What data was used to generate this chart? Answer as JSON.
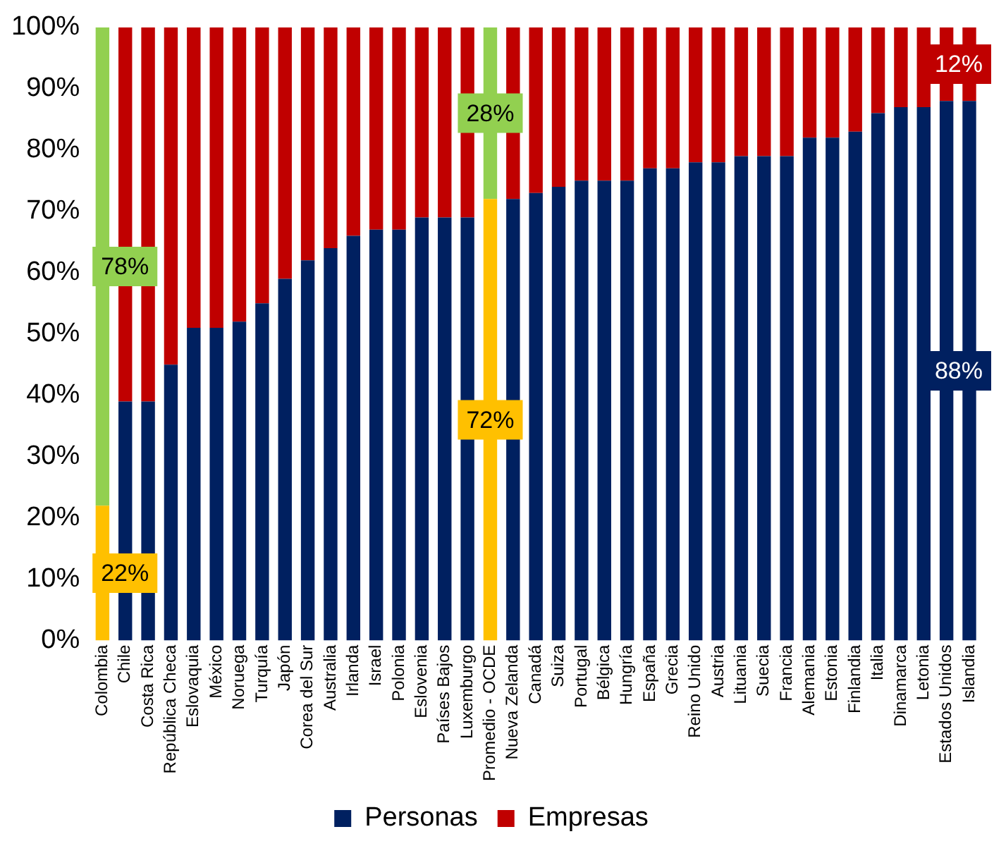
{
  "chart_data": {
    "type": "bar",
    "stacked": true,
    "legend": "bottom",
    "grid": false,
    "categories": [
      "Colombia",
      "Chile",
      "Costa Rica",
      "República Checa",
      "Eslovaquia",
      "México",
      "Noruega",
      "Turquía",
      "Japón",
      "Corea del Sur",
      "Australia",
      "Irlanda",
      "Israel",
      "Polonia",
      "Eslovenia",
      "Países Bajos",
      "Luxemburgo",
      "Promedio - OCDE",
      "Nueva Zelanda",
      "Canadá",
      "Suiza",
      "Portugal",
      "Bélgica",
      "Hungría",
      "España",
      "Grecia",
      "Reino Unido",
      "Austria",
      "Lituania",
      "Suecia",
      "Francia",
      "Alemania",
      "Estonia",
      "Finlandia",
      "Italia",
      "Dinamarca",
      "Letonia",
      "Estados Unidos",
      "Islandia"
    ],
    "ylim": [
      0,
      100
    ],
    "yticks": [
      {
        "value": 0,
        "label": "0%"
      },
      {
        "value": 10,
        "label": "10%"
      },
      {
        "value": 20,
        "label": "20%"
      },
      {
        "value": 30,
        "label": "30%"
      },
      {
        "value": 40,
        "label": "40%"
      },
      {
        "value": 50,
        "label": "50%"
      },
      {
        "value": 60,
        "label": "60%"
      },
      {
        "value": 70,
        "label": "70%"
      },
      {
        "value": 80,
        "label": "80%"
      },
      {
        "value": 90,
        "label": "90%"
      },
      {
        "value": 100,
        "label": "100%"
      }
    ],
    "series": [
      {
        "name": "Personas",
        "color": "#002060",
        "colors": [
          "#ffc000",
          "#002060",
          "#002060",
          "#002060",
          "#002060",
          "#002060",
          "#002060",
          "#002060",
          "#002060",
          "#002060",
          "#002060",
          "#002060",
          "#002060",
          "#002060",
          "#002060",
          "#002060",
          "#002060",
          "#ffc000",
          "#002060",
          "#002060",
          "#002060",
          "#002060",
          "#002060",
          "#002060",
          "#002060",
          "#002060",
          "#002060",
          "#002060",
          "#002060",
          "#002060",
          "#002060",
          "#002060",
          "#002060",
          "#002060",
          "#002060",
          "#002060",
          "#002060",
          "#002060",
          "#002060"
        ],
        "values": [
          22,
          39,
          39,
          45,
          51,
          51,
          52,
          55,
          59,
          62,
          64,
          66,
          67,
          67,
          69,
          69,
          69,
          72,
          72,
          73,
          74,
          75,
          75,
          75,
          77,
          77,
          78,
          78,
          79,
          79,
          79,
          82,
          82,
          83,
          86,
          87,
          87,
          88,
          88
        ],
        "value_labels": [
          "22%",
          null,
          null,
          null,
          null,
          null,
          null,
          null,
          null,
          null,
          null,
          null,
          null,
          null,
          null,
          null,
          null,
          "72%",
          null,
          null,
          null,
          null,
          null,
          null,
          null,
          null,
          null,
          null,
          null,
          null,
          null,
          null,
          null,
          null,
          null,
          null,
          null,
          null,
          "88%"
        ]
      },
      {
        "name": "Empresas",
        "color": "#c00000",
        "colors": [
          "#92d050",
          "#c00000",
          "#c00000",
          "#c00000",
          "#c00000",
          "#c00000",
          "#c00000",
          "#c00000",
          "#c00000",
          "#c00000",
          "#c00000",
          "#c00000",
          "#c00000",
          "#c00000",
          "#c00000",
          "#c00000",
          "#c00000",
          "#92d050",
          "#c00000",
          "#c00000",
          "#c00000",
          "#c00000",
          "#c00000",
          "#c00000",
          "#c00000",
          "#c00000",
          "#c00000",
          "#c00000",
          "#c00000",
          "#c00000",
          "#c00000",
          "#c00000",
          "#c00000",
          "#c00000",
          "#c00000",
          "#c00000",
          "#c00000",
          "#c00000",
          "#c00000"
        ],
        "values": [
          78,
          61,
          61,
          55,
          49,
          49,
          48,
          45,
          41,
          38,
          36,
          34,
          33,
          33,
          31,
          31,
          31,
          28,
          28,
          27,
          26,
          25,
          25,
          25,
          23,
          23,
          22,
          22,
          21,
          21,
          21,
          18,
          18,
          17,
          14,
          13,
          13,
          12,
          12
        ],
        "value_labels": [
          "78%",
          null,
          null,
          null,
          null,
          null,
          null,
          null,
          null,
          null,
          null,
          null,
          null,
          null,
          null,
          null,
          null,
          "28%",
          null,
          null,
          null,
          null,
          null,
          null,
          null,
          null,
          null,
          null,
          null,
          null,
          null,
          null,
          null,
          null,
          null,
          null,
          null,
          null,
          "12%"
        ]
      }
    ]
  }
}
